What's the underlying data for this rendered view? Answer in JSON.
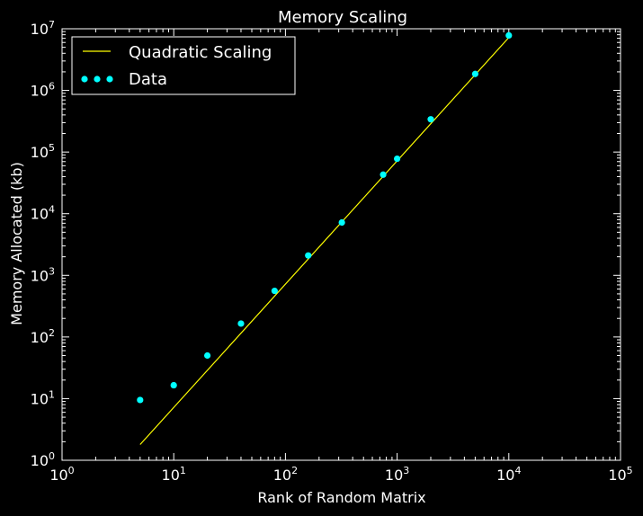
{
  "chart_data": {
    "type": "scatter",
    "title": "Memory Scaling",
    "xlabel": "Rank of Random Matrix",
    "ylabel": "Memory Allocated (kb)",
    "xscale": "log",
    "yscale": "log",
    "xlim": [
      1,
      100000
    ],
    "ylim": [
      1,
      10000000
    ],
    "x_ticks": [
      {
        "base": "10",
        "exp": "0",
        "value": 1
      },
      {
        "base": "10",
        "exp": "1",
        "value": 10
      },
      {
        "base": "10",
        "exp": "2",
        "value": 100
      },
      {
        "base": "10",
        "exp": "3",
        "value": 1000
      },
      {
        "base": "10",
        "exp": "4",
        "value": 10000
      },
      {
        "base": "10",
        "exp": "5",
        "value": 100000
      }
    ],
    "y_ticks": [
      {
        "base": "10",
        "exp": "0",
        "value": 1
      },
      {
        "base": "10",
        "exp": "1",
        "value": 10
      },
      {
        "base": "10",
        "exp": "2",
        "value": 100
      },
      {
        "base": "10",
        "exp": "3",
        "value": 1000
      },
      {
        "base": "10",
        "exp": "4",
        "value": 10000
      },
      {
        "base": "10",
        "exp": "5",
        "value": 100000
      },
      {
        "base": "10",
        "exp": "6",
        "value": 1000000
      },
      {
        "base": "10",
        "exp": "7",
        "value": 10000000
      }
    ],
    "grid": false,
    "legend_position": "top-left",
    "series": [
      {
        "name": "Quadratic Scaling",
        "kind": "line",
        "color": "#ffff00",
        "x": [
          5,
          10000
        ],
        "y": [
          1.8,
          7200000
        ]
      },
      {
        "name": "Data",
        "kind": "scatter",
        "color": "#00ffff",
        "x": [
          5,
          10,
          20,
          40,
          80,
          160,
          320,
          750,
          1000,
          2000,
          5000,
          10000
        ],
        "y": [
          9.5,
          16.5,
          50,
          165,
          560,
          2100,
          7200,
          43000,
          78000,
          340000,
          1850000,
          7800000
        ]
      }
    ]
  }
}
